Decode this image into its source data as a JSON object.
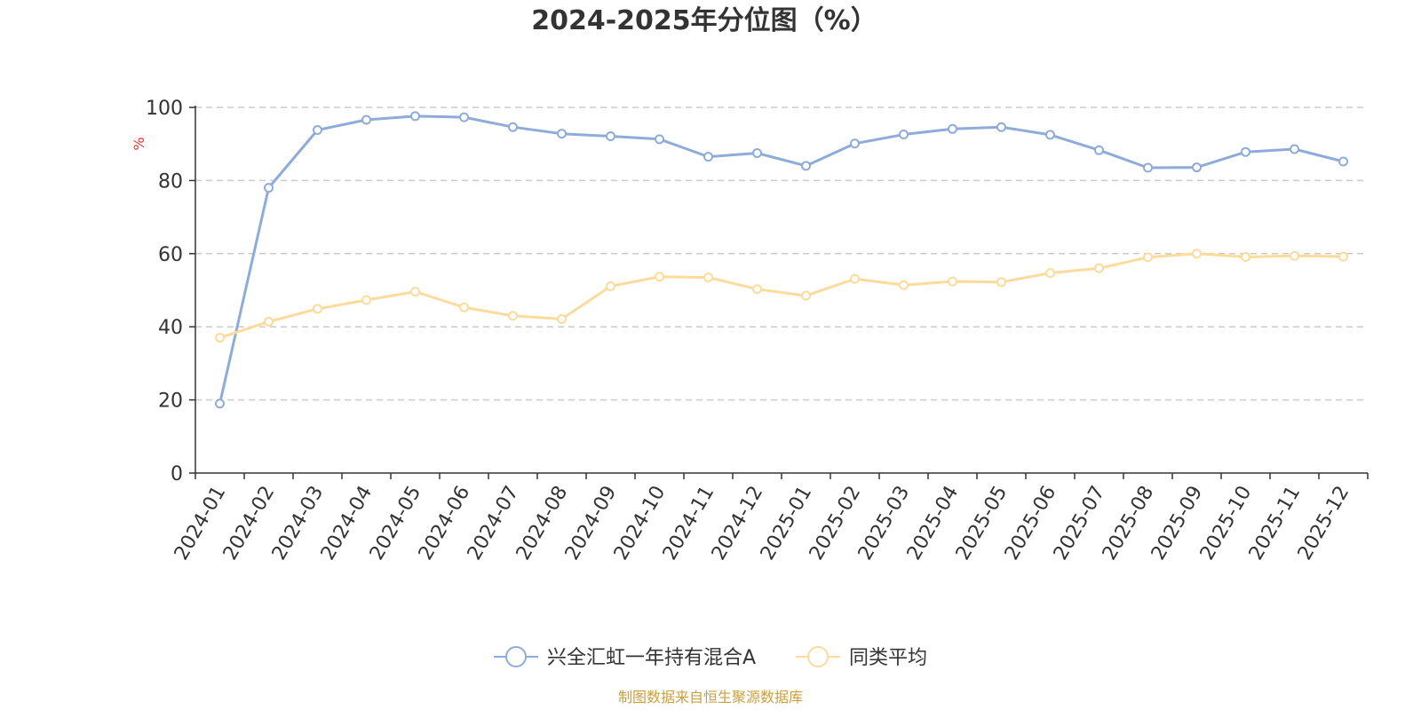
{
  "chart_data": {
    "type": "line",
    "title": "2024-2025年分位图（%）",
    "ylabel": "%",
    "ylim": [
      0,
      100
    ],
    "yticks": [
      0,
      20,
      40,
      60,
      80,
      100
    ],
    "grid": true,
    "legend_position": "bottom-center",
    "x": [
      "2024-01",
      "2024-02",
      "2024-03",
      "2024-04",
      "2024-05",
      "2024-06",
      "2024-07",
      "2024-08",
      "2024-09",
      "2024-10",
      "2024-11",
      "2024-12",
      "2025-01",
      "2025-02",
      "2025-03",
      "2025-04",
      "2025-05",
      "2025-06",
      "2025-07",
      "2025-08",
      "2025-09",
      "2025-10",
      "2025-11",
      "2025-12"
    ],
    "series": [
      {
        "name": "兴全汇虹一年持有混合A",
        "color": "#8fabd9",
        "values": [
          19.0,
          78.0,
          93.8,
          96.6,
          97.6,
          97.3,
          94.6,
          92.8,
          92.1,
          91.3,
          86.5,
          87.5,
          84.0,
          90.1,
          92.6,
          94.1,
          94.6,
          92.5,
          88.3,
          83.5,
          83.6,
          87.8,
          88.6,
          85.2
        ]
      },
      {
        "name": "同类平均",
        "color": "#fddb9c",
        "values": [
          37.0,
          41.4,
          44.9,
          47.3,
          49.6,
          45.3,
          43.0,
          42.1,
          51.1,
          53.7,
          53.5,
          50.3,
          48.5,
          53.1,
          51.4,
          52.4,
          52.2,
          54.7,
          56.0,
          59.0,
          60.0,
          59.1,
          59.4,
          59.2
        ]
      }
    ]
  },
  "colors": {
    "axis": "#333333",
    "grid": "#cccccc",
    "ylabel": "#e5332b",
    "source": "#c8a040"
  },
  "source": "制图数据来自恒生聚源数据库"
}
